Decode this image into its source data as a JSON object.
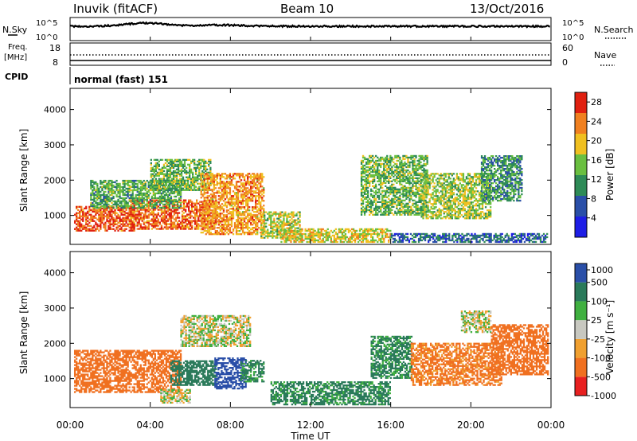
{
  "header": {
    "station": "Inuvik (fitACF)",
    "beam": "Beam 10",
    "date": "13/Oct/2016"
  },
  "top_strip": {
    "left_label_1": "N.Sky",
    "left_ticks_1": [
      "10^5",
      "10^0"
    ],
    "left_label_2a": "Freq.",
    "left_label_2b": "[MHz]",
    "left_ticks_2": [
      "18",
      "8"
    ],
    "left_label_3": "CPID",
    "right_label_1": "N.Search",
    "right_ticks_1": [
      "10^5",
      "10^0"
    ],
    "right_label_2": "Nave",
    "right_ticks_2": [
      "60",
      "0"
    ],
    "cpid_text": "normal (fast) 151"
  },
  "colors": {
    "power_scale": [
      "#1e1ee6",
      "#2a4fa8",
      "#2e8b57",
      "#6abf40",
      "#f0c020",
      "#f08020",
      "#e02010"
    ],
    "velocity_scale": [
      "#e82020",
      "#f07020",
      "#f0a030",
      "#c8c8c0",
      "#40b040",
      "#2a7a5a",
      "#2a4fa8"
    ]
  },
  "chart_data": [
    {
      "type": "heatmap",
      "title": "",
      "ylabel": "Slant Range [km]",
      "xlabel": "",
      "ylim": [
        180,
        4600
      ],
      "yticks": [
        1000,
        2000,
        3000,
        4000
      ],
      "xlim_hours": [
        0,
        24
      ],
      "colorbar": {
        "label": "Power [dB]",
        "ticks": [
          4,
          8,
          12,
          16,
          20,
          24,
          28
        ],
        "range": [
          0,
          30
        ]
      },
      "regions": [
        {
          "t0": 0.2,
          "t1": 3.2,
          "r0": 550,
          "r1": 1250,
          "v": 26
        },
        {
          "t0": 3.0,
          "t1": 7.3,
          "r0": 600,
          "r1": 1450,
          "v": 25
        },
        {
          "t0": 1.0,
          "t1": 5.5,
          "r0": 1200,
          "r1": 2000,
          "v": 13
        },
        {
          "t0": 4.0,
          "t1": 7.0,
          "r0": 1700,
          "r1": 2600,
          "v": 14
        },
        {
          "t0": 6.5,
          "t1": 9.7,
          "r0": 450,
          "r1": 2200,
          "v": 22
        },
        {
          "t0": 9.5,
          "t1": 11.5,
          "r0": 350,
          "r1": 1100,
          "v": 17
        },
        {
          "t0": 10.5,
          "t1": 16.0,
          "r0": 230,
          "r1": 600,
          "v": 18
        },
        {
          "t0": 14.5,
          "t1": 17.8,
          "r0": 1000,
          "r1": 2700,
          "v": 14
        },
        {
          "t0": 17.5,
          "t1": 21.0,
          "r0": 900,
          "r1": 2200,
          "v": 16
        },
        {
          "t0": 20.5,
          "t1": 22.5,
          "r0": 1400,
          "r1": 2700,
          "v": 11
        },
        {
          "t0": 16.0,
          "t1": 23.8,
          "r0": 230,
          "r1": 500,
          "v": 8
        }
      ]
    },
    {
      "type": "heatmap",
      "title": "",
      "ylabel": "Slant Range [km]",
      "xlabel": "Time UT",
      "ylim": [
        180,
        4600
      ],
      "yticks": [
        1000,
        2000,
        3000,
        4000
      ],
      "xticks": [
        "00:00",
        "04:00",
        "08:00",
        "12:00",
        "16:00",
        "20:00",
        "00:00"
      ],
      "xlim_hours": [
        0,
        24
      ],
      "colorbar": {
        "label": "Velocity [m s⁻¹]",
        "ticks": [
          "1000",
          "500",
          "100",
          "25",
          "-25",
          "-100",
          "-500",
          "-1000"
        ]
      },
      "regions": [
        {
          "t0": 0.2,
          "t1": 5.5,
          "r0": 600,
          "r1": 1800,
          "v": -300
        },
        {
          "t0": 5.0,
          "t1": 7.3,
          "r0": 800,
          "r1": 1500,
          "v": 200
        },
        {
          "t0": 7.2,
          "t1": 8.8,
          "r0": 700,
          "r1": 1600,
          "v": 700
        },
        {
          "t0": 8.5,
          "t1": 9.7,
          "r0": 900,
          "r1": 1500,
          "v": 150
        },
        {
          "t0": 4.5,
          "t1": 6.0,
          "r0": 300,
          "r1": 700,
          "v": 0
        },
        {
          "t0": 5.5,
          "t1": 9.0,
          "r0": 1900,
          "r1": 2800,
          "v": 0
        },
        {
          "t0": 10.0,
          "t1": 16.0,
          "r0": 250,
          "r1": 900,
          "v": 150
        },
        {
          "t0": 15.0,
          "t1": 17.0,
          "r0": 1000,
          "r1": 2200,
          "v": 150
        },
        {
          "t0": 17.0,
          "t1": 21.5,
          "r0": 800,
          "r1": 2000,
          "v": -150
        },
        {
          "t0": 19.5,
          "t1": 21.0,
          "r0": 2300,
          "r1": 2900,
          "v": 0
        },
        {
          "t0": 21.0,
          "t1": 23.8,
          "r0": 1100,
          "r1": 2500,
          "v": -350
        }
      ]
    }
  ]
}
